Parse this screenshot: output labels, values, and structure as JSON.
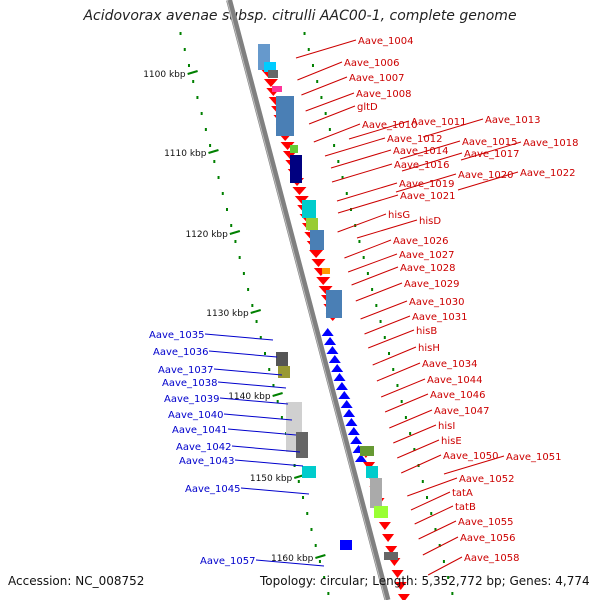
{
  "title": "Acidovorax avenae subsp. citrulli AAC00-1, complete genome",
  "footer": {
    "accession": "Accession: NC_008752",
    "topology": "Topology: circular; Length: 5,352,772 bp; Genes: 4,774"
  },
  "colors": {
    "forward_label": "#cc0000",
    "reverse_label": "#0000cc",
    "forward_feature": "#ff0000",
    "reverse_feature": "#0000ff",
    "backbone": "#808080",
    "tick": "#008000"
  },
  "scale_ticks": [
    "1100 kbp",
    "1110 kbp",
    "1120 kbp",
    "1130 kbp",
    "1140 kbp",
    "1150 kbp",
    "1160 kbp"
  ],
  "forward_genes": [
    "Aave_1004",
    "Aave_1006",
    "Aave_1007",
    "Aave_1008",
    "gltD",
    "Aave_1010",
    "Aave_1011",
    "Aave_1013",
    "Aave_1012",
    "Aave_1015",
    "Aave_1018",
    "Aave_1014",
    "Aave_1017",
    "Aave_1016",
    "Aave_1020",
    "Aave_1022",
    "Aave_1019",
    "Aave_1021",
    "hisG",
    "hisD",
    "Aave_1026",
    "Aave_1027",
    "Aave_1028",
    "Aave_1029",
    "Aave_1030",
    "Aave_1031",
    "hisB",
    "hisH",
    "Aave_1034",
    "Aave_1044",
    "Aave_1046",
    "Aave_1047",
    "hisI",
    "hisE",
    "Aave_1050",
    "Aave_1051",
    "Aave_1052",
    "tatA",
    "tatB",
    "Aave_1055",
    "Aave_1056",
    "Aave_1058"
  ],
  "reverse_genes": [
    "Aave_1035",
    "Aave_1036",
    "Aave_1037",
    "Aave_1038",
    "Aave_1039",
    "Aave_1040",
    "Aave_1041",
    "Aave_1042",
    "Aave_1043",
    "Aave_1045",
    "Aave_1057"
  ]
}
